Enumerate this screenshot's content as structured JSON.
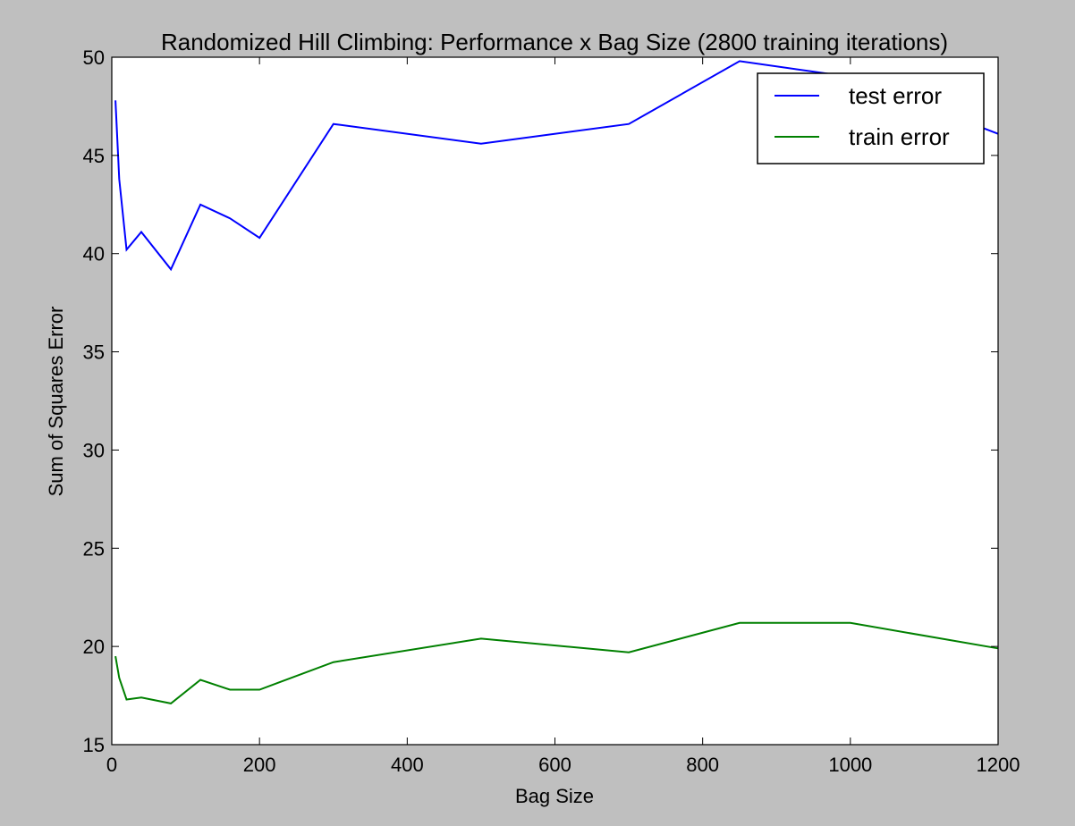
{
  "chart_data": {
    "type": "line",
    "title": "Randomized Hill Climbing: Performance x Bag Size (2800 training iterations)",
    "xlabel": "Bag Size",
    "ylabel": "Sum of Squares Error",
    "xlim": [
      0,
      1200
    ],
    "ylim": [
      15,
      50
    ],
    "xticks": [
      0,
      200,
      400,
      600,
      800,
      1000,
      1200
    ],
    "yticks": [
      15,
      20,
      25,
      30,
      35,
      40,
      45,
      50
    ],
    "grid": false,
    "legend_position": "top-right",
    "x": [
      5,
      10,
      20,
      40,
      80,
      120,
      160,
      200,
      300,
      500,
      700,
      850,
      1000,
      1200
    ],
    "series": [
      {
        "name": "test error",
        "color": "#0000ff",
        "values": [
          47.8,
          43.8,
          40.2,
          41.1,
          39.2,
          42.5,
          41.8,
          40.8,
          46.6,
          45.6,
          46.6,
          49.8,
          49.0,
          46.1
        ]
      },
      {
        "name": "train error",
        "color": "#008000",
        "values": [
          19.5,
          18.4,
          17.3,
          17.4,
          17.1,
          18.3,
          17.8,
          17.8,
          19.2,
          20.4,
          19.7,
          21.2,
          21.2,
          19.9
        ]
      }
    ]
  }
}
